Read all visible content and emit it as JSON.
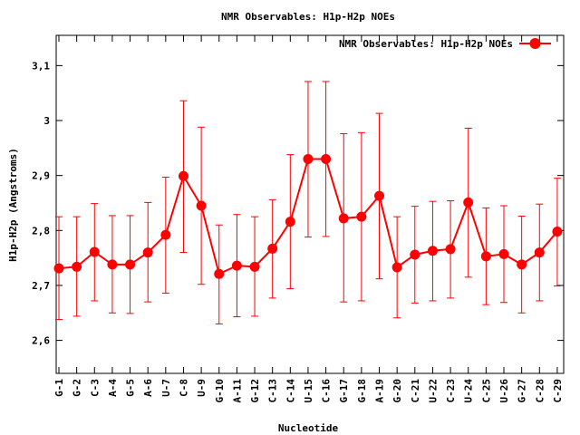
{
  "chart_data": {
    "type": "line",
    "title": "NMR Observables: H1p-H2p NOEs",
    "xlabel": "Nucleotide",
    "ylabel": "H1p-H2p (Angstroms)",
    "ylim": [
      2.54,
      3.155
    ],
    "yticks": [
      2.6,
      2.7,
      2.8,
      2.9,
      3,
      3.1
    ],
    "ytick_labels": [
      "2,6",
      "2,7",
      "2,8",
      "2,9",
      "3",
      "3,1"
    ],
    "grid": false,
    "legend": "top-right",
    "series_color": "#ff0000",
    "categories": [
      "G-1",
      "G-2",
      "C-3",
      "A-4",
      "G-5",
      "A-6",
      "U-7",
      "C-8",
      "U-9",
      "G-10",
      "A-11",
      "G-12",
      "C-13",
      "C-14",
      "U-15",
      "C-16",
      "G-17",
      "G-18",
      "A-19",
      "G-20",
      "C-21",
      "U-22",
      "C-23",
      "U-24",
      "C-25",
      "U-26",
      "G-27",
      "C-28",
      "C-29"
    ],
    "series": [
      {
        "name": "NMR Observables: H1p-H2p NOEs",
        "values": [
          2.731,
          2.734,
          2.761,
          2.738,
          2.738,
          2.76,
          2.792,
          2.899,
          2.845,
          2.721,
          2.736,
          2.734,
          2.767,
          2.816,
          2.93,
          2.93,
          2.822,
          2.825,
          2.863,
          2.733,
          2.756,
          2.763,
          2.766,
          2.851,
          2.753,
          2.757,
          2.738,
          2.76,
          2.798
        ],
        "err_low": [
          2.638,
          2.644,
          2.672,
          2.65,
          2.649,
          2.67,
          2.686,
          2.76,
          2.702,
          2.63,
          2.643,
          2.644,
          2.677,
          2.694,
          2.788,
          2.789,
          2.67,
          2.672,
          2.712,
          2.641,
          2.668,
          2.672,
          2.677,
          2.715,
          2.665,
          2.669,
          2.65,
          2.672,
          2.699
        ],
        "err_high": [
          2.825,
          2.825,
          2.849,
          2.827,
          2.827,
          2.851,
          2.897,
          3.036,
          2.988,
          2.81,
          2.829,
          2.825,
          2.856,
          2.938,
          3.071,
          3.071,
          2.976,
          2.978,
          3.013,
          2.825,
          2.844,
          2.853,
          2.854,
          2.986,
          2.841,
          2.845,
          2.826,
          2.848,
          2.895
        ]
      }
    ]
  }
}
